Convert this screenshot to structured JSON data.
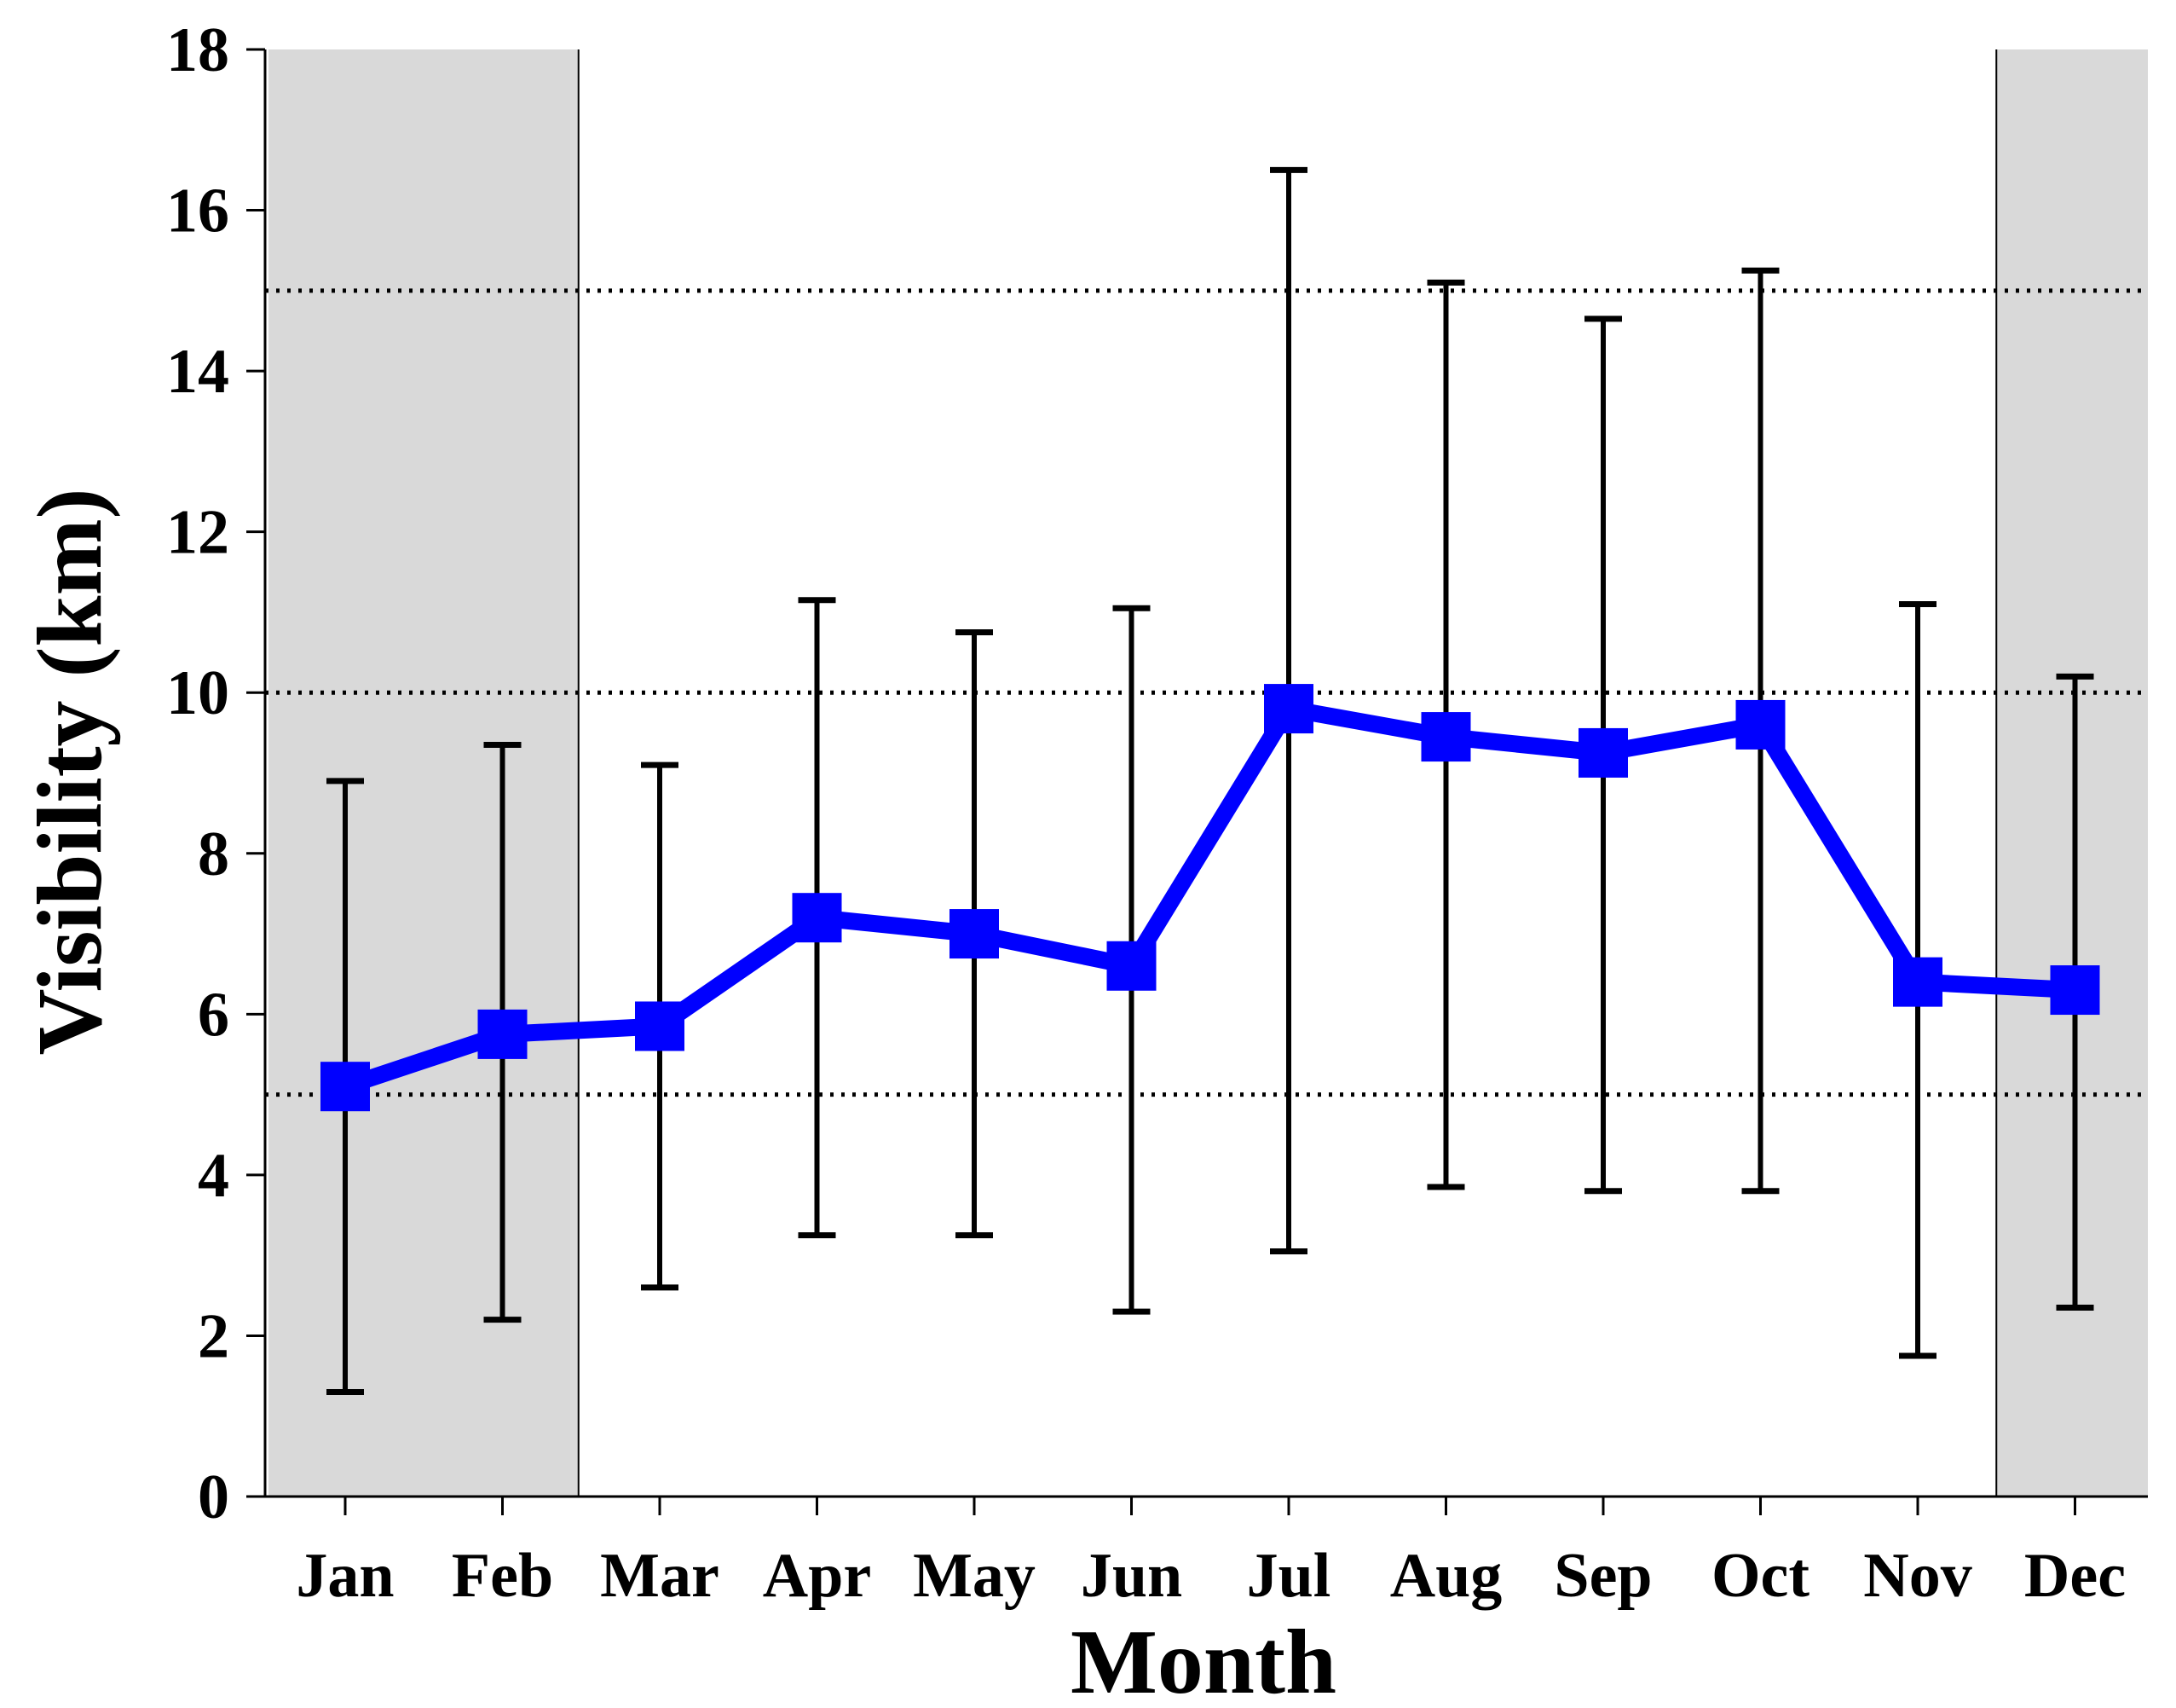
{
  "chart_data": {
    "type": "line",
    "title": "",
    "xlabel": "Month",
    "ylabel": "Visibility (km)",
    "ylim": [
      0,
      18
    ],
    "yticks": [
      0,
      2,
      4,
      6,
      8,
      10,
      12,
      14,
      16,
      18
    ],
    "categories": [
      "Jan",
      "Feb",
      "Mar",
      "Apr",
      "May",
      "Jun",
      "Jul",
      "Aug",
      "Sep",
      "Oct",
      "Nov",
      "Dec"
    ],
    "series": [
      {
        "values": [
          5.1,
          5.75,
          5.85,
          7.2,
          7.0,
          6.6,
          9.8,
          9.45,
          9.25,
          9.6,
          6.4,
          6.3
        ],
        "error_low": [
          1.3,
          2.2,
          2.6,
          3.25,
          3.25,
          2.3,
          3.05,
          3.85,
          3.8,
          3.8,
          1.75,
          2.35
        ],
        "error_high": [
          8.9,
          9.35,
          9.1,
          11.15,
          10.75,
          11.05,
          16.5,
          15.1,
          14.65,
          15.25,
          11.1,
          10.2
        ]
      }
    ],
    "reference_lines": [
      5,
      10,
      15
    ],
    "shaded_months": [
      [
        "Jan",
        "Feb"
      ],
      [
        "Dec",
        "Dec"
      ]
    ],
    "grid": false,
    "colors": {
      "line": "#0000ff",
      "error_bars": "#000000",
      "shading": "#d9d9d9",
      "reference_lines": "#000000"
    }
  }
}
